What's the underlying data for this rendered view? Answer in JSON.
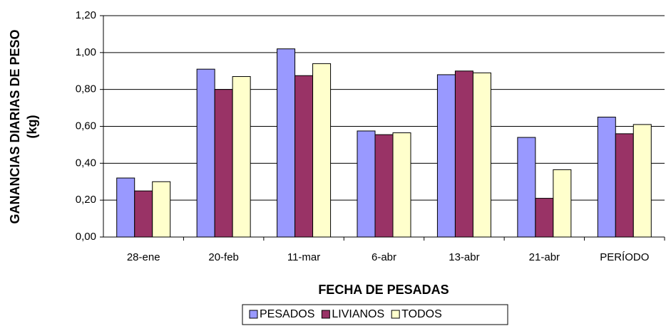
{
  "chart_data": {
    "type": "bar",
    "y_label": [
      "GANANCIAS DIARIAS DE PESO",
      "(kg)"
    ],
    "x_label": "FECHA DE PESADAS",
    "categories": [
      "28-ene",
      "20-feb",
      "11-mar",
      "6-abr",
      "13-abr",
      "21-abr",
      "PERÍODO"
    ],
    "series": [
      {
        "name": "PESADOS",
        "color": "#9999ff",
        "values": [
          0.32,
          0.91,
          1.02,
          0.575,
          0.88,
          0.54,
          0.65
        ]
      },
      {
        "name": "LIVIANOS",
        "color": "#993366",
        "values": [
          0.25,
          0.8,
          0.875,
          0.555,
          0.9,
          0.21,
          0.56
        ]
      },
      {
        "name": "TODOS",
        "color": "#ffffcc",
        "values": [
          0.3,
          0.87,
          0.94,
          0.565,
          0.89,
          0.365,
          0.61
        ]
      }
    ],
    "ylim": [
      0,
      1.2
    ],
    "yticks": [
      {
        "value": 0,
        "label": "0,00"
      },
      {
        "value": 0.2,
        "label": "0,20"
      },
      {
        "value": 0.4,
        "label": "0,40"
      },
      {
        "value": 0.6,
        "label": "0,60"
      },
      {
        "value": 0.8,
        "label": "0,80"
      },
      {
        "value": 1.0,
        "label": "1,00"
      },
      {
        "value": 1.2,
        "label": "1,20"
      }
    ],
    "grid": true,
    "legend": "bottom"
  }
}
